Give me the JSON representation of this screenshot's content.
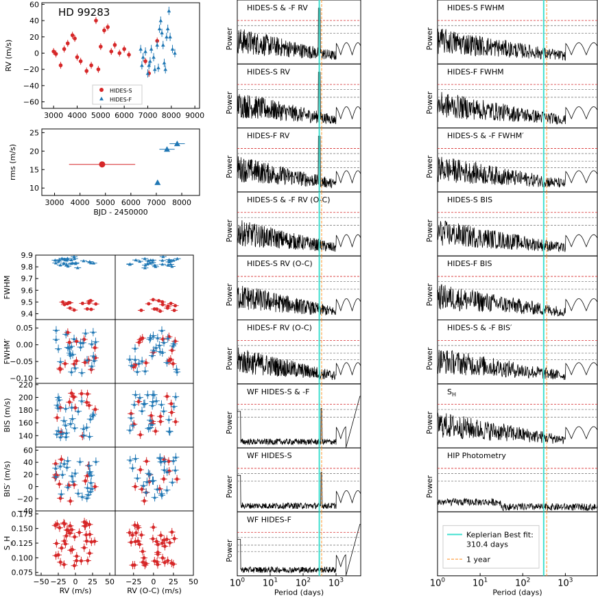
{
  "chart_data": {
    "type": "scatter",
    "colors": {
      "hides_s": "#d62728",
      "hides_f": "#1f77b4",
      "keplerian": "#40e0d0",
      "one_year": "#ffa64d",
      "fap_high": "#d62728",
      "fap_low": "#7f7f7f",
      "periodogram": "#000000"
    },
    "rv_panel": {
      "title": "HD 99283",
      "ylabel": "RV (m/s)",
      "xticks": [
        "3000",
        "4000",
        "5000",
        "6000",
        "7000",
        "8000",
        "9000"
      ],
      "yticks": [
        "60",
        "40",
        "20",
        "0",
        "−20",
        "−40",
        "−60"
      ],
      "xlim": [
        2500,
        9200
      ],
      "ylim": [
        -68,
        62
      ],
      "legend": [
        "HIDES-S",
        "HIDES-F"
      ],
      "hides_s": [
        [
          3000,
          2
        ],
        [
          3100,
          -1
        ],
        [
          3300,
          -15
        ],
        [
          3450,
          5
        ],
        [
          3600,
          12
        ],
        [
          3800,
          22
        ],
        [
          3900,
          18
        ],
        [
          4000,
          -5
        ],
        [
          4150,
          -10
        ],
        [
          4400,
          -22
        ],
        [
          4600,
          -15
        ],
        [
          4800,
          40
        ],
        [
          4900,
          -20
        ],
        [
          5000,
          8
        ],
        [
          5150,
          28
        ],
        [
          5300,
          32
        ],
        [
          5450,
          2
        ],
        [
          5600,
          10
        ],
        [
          5800,
          0
        ],
        [
          6000,
          5
        ],
        [
          6200,
          -2
        ],
        [
          6900,
          -10
        ],
        [
          7050,
          -25
        ],
        [
          7400,
          15
        ]
      ],
      "hides_f": [
        [
          6700,
          5
        ],
        [
          6750,
          -15
        ],
        [
          6800,
          -5
        ],
        [
          6900,
          2
        ],
        [
          7000,
          -25
        ],
        [
          7100,
          -10
        ],
        [
          7150,
          5
        ],
        [
          7300,
          -20
        ],
        [
          7400,
          10
        ],
        [
          7500,
          30
        ],
        [
          7550,
          40
        ],
        [
          7600,
          25
        ],
        [
          7650,
          10
        ],
        [
          7700,
          -12
        ],
        [
          7750,
          -20
        ],
        [
          7800,
          20
        ],
        [
          7850,
          30
        ],
        [
          7900,
          52
        ],
        [
          7950,
          20
        ],
        [
          8050,
          5
        ],
        [
          8150,
          0
        ],
        [
          7450,
          -18
        ],
        [
          7250,
          -5
        ],
        [
          7050,
          -15
        ]
      ]
    },
    "rms_panel": {
      "ylabel": "rms (m/s)",
      "xlabel": "BJD - 2450000",
      "xticks": [
        "3000",
        "4000",
        "5000",
        "6000",
        "7000",
        "8000"
      ],
      "yticks": [
        "25",
        "20",
        "15",
        "10"
      ],
      "xlim": [
        2500,
        8700
      ],
      "ylim": [
        8,
        26
      ],
      "points": [
        {
          "x": 4870,
          "y": 16.4,
          "xerr": 1300,
          "series": "HIDES-S"
        },
        {
          "x": 7050,
          "y": 11.5,
          "xerr": 0,
          "series": "HIDES-F"
        },
        {
          "x": 7420,
          "y": 20.5,
          "xerr": 300,
          "series": "HIDES-F"
        },
        {
          "x": 7820,
          "y": 22.0,
          "xerr": 300,
          "series": "HIDES-F"
        }
      ]
    },
    "corr_panels": {
      "ylabels": [
        "FWHM",
        "FWHM′",
        "BIS (m/s)",
        "BIS′ (m/s)",
        "S_H"
      ],
      "xlabels": [
        "RV (m/s)",
        "RV (O-C) (m/s)"
      ],
      "xticks_left": [
        "−50",
        "−25",
        "0",
        "25",
        "50"
      ],
      "xticks_right": [
        "−25",
        "0",
        "25",
        "50"
      ],
      "yticks": [
        [
          "9.9",
          "9.8",
          "9.7",
          "9.6",
          "9.5",
          "9.4"
        ],
        [
          "0.05",
          "0.00",
          "−0.05",
          "−0.10"
        ],
        [
          "220",
          "200",
          "180",
          "160",
          "140"
        ],
        [
          "60",
          "40",
          "20",
          "0",
          "−20",
          "−40"
        ],
        [
          "0.175",
          "0.150",
          "0.125",
          "0.100",
          "0.075"
        ]
      ]
    },
    "periodograms": {
      "xlabel": "Period (days)",
      "ylabel": "Power",
      "xtick_labels": [
        "10^0",
        "10^1",
        "10^2",
        "10^3"
      ],
      "keplerian_period": 310.4,
      "one_year": 365.25,
      "legend": {
        "keplerian": "Keplerian Best fit:",
        "keplerian_value": "310.4 days",
        "year": "1 year"
      },
      "middle": [
        "HIDES-S & -F RV",
        "HIDES-S RV",
        "HIDES-F RV",
        "HIDES-S & -F RV (O-C)",
        "HIDES-S RV (O-C)",
        "HIDES-F RV (O-C)",
        "WF HIDES-S & -F",
        "WF HIDES-S",
        "WF HIDES-F"
      ],
      "right": [
        "HIDES-S FWHM",
        "HIDES-F FWHM",
        "HIDES-S & -F FWHM′",
        "HIDES-S BIS",
        "HIDES-F BIS",
        "HIDES-S & -F BIS′",
        "S_H",
        "HIP Photometry",
        ""
      ]
    }
  }
}
